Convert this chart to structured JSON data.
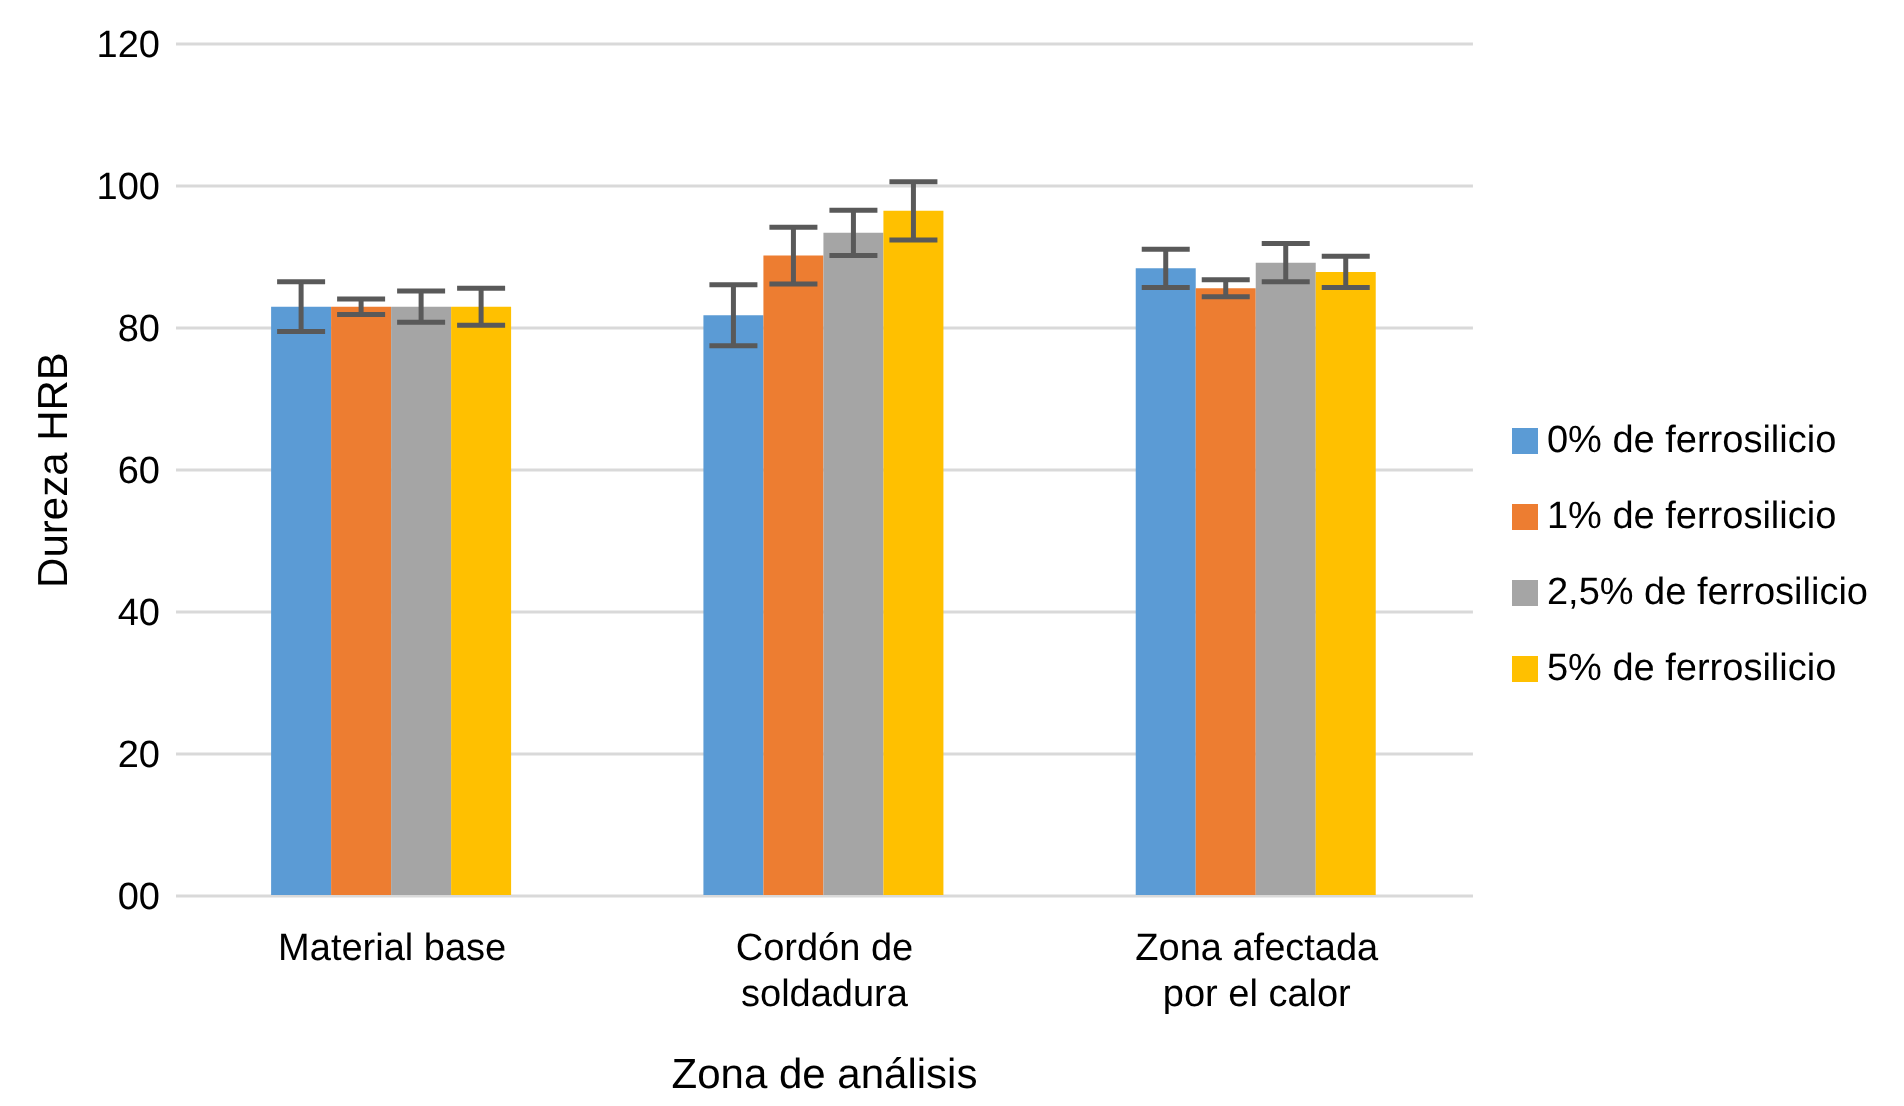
{
  "chart_data": {
    "type": "bar",
    "xlabel": "Zona de análisis",
    "ylabel": "Dureza HRB",
    "categories": [
      "Material base",
      "Cordón de soldadura",
      "Zona afectada por el calor"
    ],
    "series": [
      {
        "name": "0% de ferrosilicio",
        "color": "#5b9bd5",
        "values": [
          83.0,
          81.8,
          88.4
        ],
        "errors": [
          3.5,
          4.3,
          2.7
        ]
      },
      {
        "name": "1% de ferrosilicio",
        "color": "#ed7d31",
        "values": [
          83.0,
          90.2,
          85.6
        ],
        "errors": [
          1.1,
          4.0,
          1.2
        ]
      },
      {
        "name": "2,5% de ferrosilicio",
        "color": "#a5a5a5",
        "values": [
          83.0,
          93.4,
          89.2
        ],
        "errors": [
          2.2,
          3.2,
          2.7
        ]
      },
      {
        "name": "5% de ferrosilicio",
        "color": "#ffc000",
        "values": [
          83.0,
          96.5,
          87.9
        ],
        "errors": [
          2.6,
          4.1,
          2.2
        ]
      }
    ],
    "ylim": [
      0,
      120
    ],
    "yticks": [
      {
        "value": 0,
        "label": "00"
      },
      20,
      40,
      60,
      80,
      100,
      120
    ],
    "grid": "y",
    "legend": "right"
  }
}
